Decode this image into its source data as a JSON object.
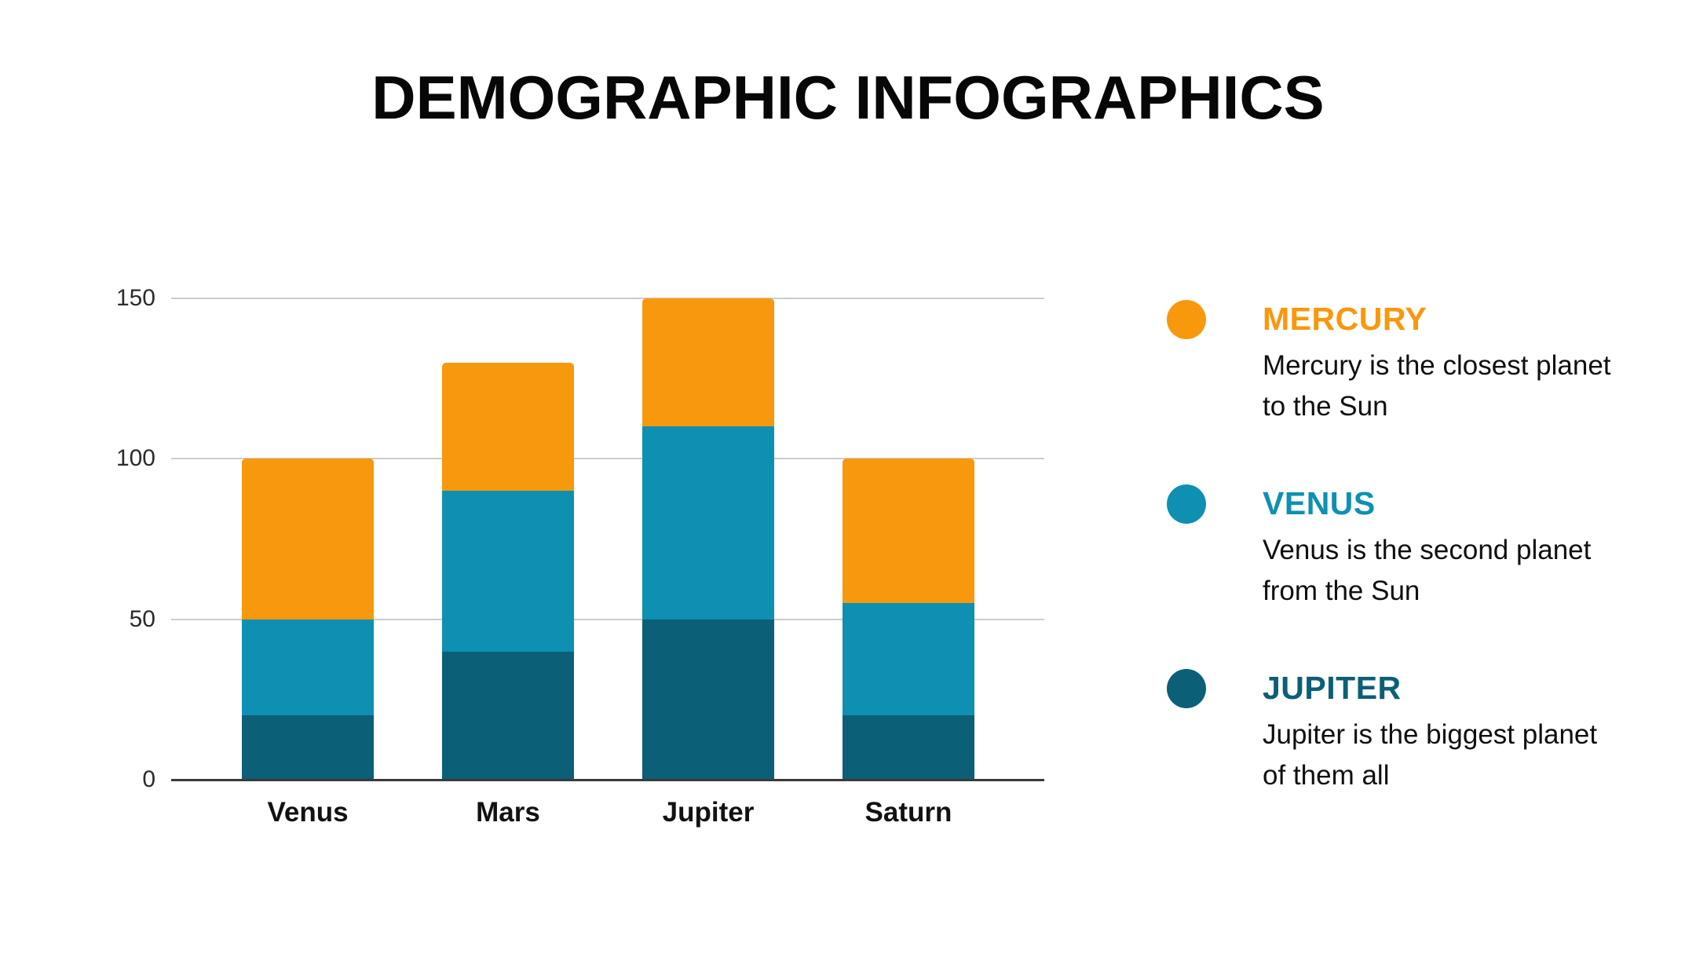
{
  "title": "DEMOGRAPHIC INFOGRAPHICS",
  "chart_data": {
    "type": "bar",
    "stacked": true,
    "title": "DEMOGRAPHIC INFOGRAPHICS",
    "categories": [
      "Venus",
      "Mars",
      "Jupiter",
      "Saturn"
    ],
    "series": [
      {
        "name": "JUPITER",
        "color": "#0B5F77",
        "values": [
          20,
          40,
          50,
          20
        ]
      },
      {
        "name": "VENUS",
        "color": "#0E90B2",
        "values": [
          30,
          50,
          60,
          35
        ]
      },
      {
        "name": "MERCURY",
        "color": "#F8980D",
        "values": [
          50,
          40,
          40,
          45
        ]
      }
    ],
    "stack_totals": [
      100,
      130,
      150,
      100
    ],
    "xlabel": "",
    "ylabel": "",
    "ylim": [
      0,
      150
    ],
    "yticks": [
      0,
      50,
      100,
      150
    ],
    "grid": true,
    "legend_position": "right"
  },
  "legend": {
    "items": [
      {
        "name": "MERCURY",
        "color": "#F8980D",
        "description": "Mercury is the closest planet to the Sun"
      },
      {
        "name": "VENUS",
        "color": "#0E90B2",
        "description": "Venus is the second planet from the Sun"
      },
      {
        "name": "JUPITER",
        "color": "#0B5F77",
        "description": "Jupiter is the biggest planet of them all"
      }
    ]
  }
}
